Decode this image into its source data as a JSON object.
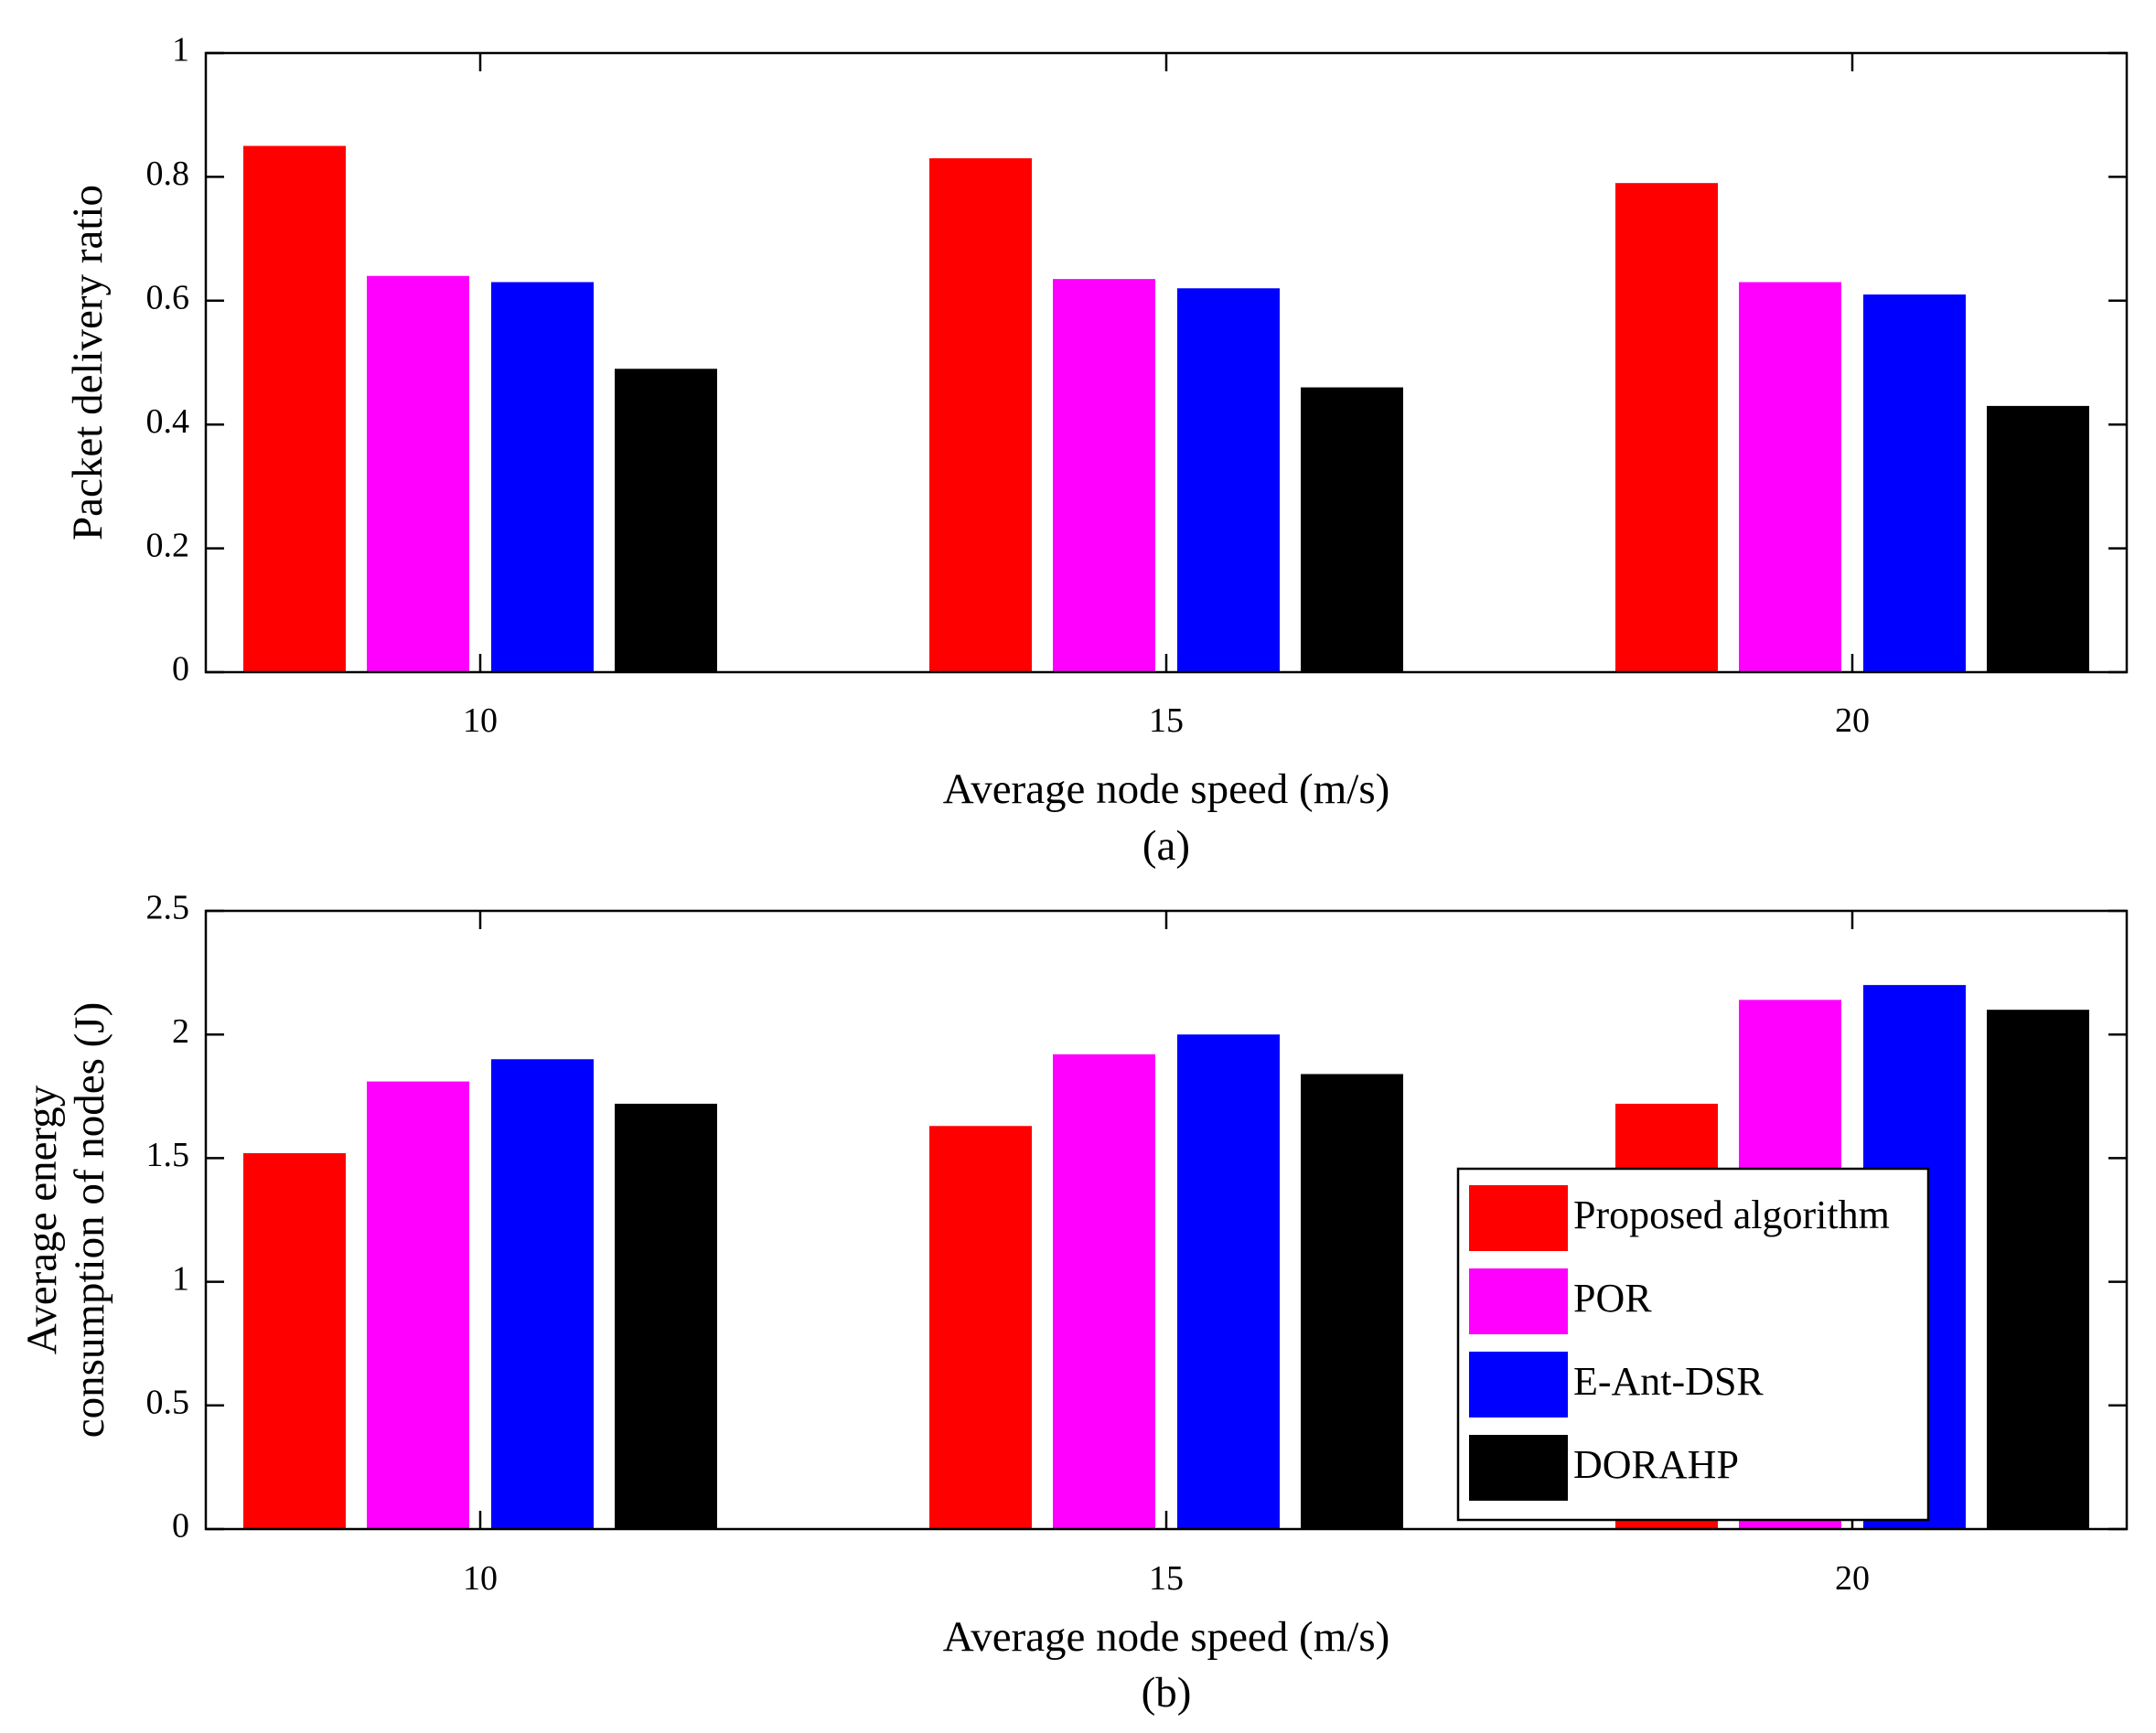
{
  "chart_data": [
    {
      "type": "bar",
      "categories": [
        "10",
        "15",
        "20"
      ],
      "series": [
        {
          "name": "Proposed algorithm",
          "values": [
            0.85,
            0.83,
            0.79
          ]
        },
        {
          "name": "POR",
          "values": [
            0.64,
            0.635,
            0.63
          ]
        },
        {
          "name": "E-Ant-DSR",
          "values": [
            0.63,
            0.62,
            0.61
          ]
        },
        {
          "name": "DORAHP",
          "values": [
            0.49,
            0.46,
            0.43
          ]
        }
      ],
      "xlabel": "Average node speed (m/s)",
      "ylabel_lines": [
        "Packet delivery ratio"
      ],
      "caption": "(a)",
      "ylim": [
        0,
        1
      ],
      "yticks": [
        0,
        0.2,
        0.4,
        0.6,
        0.8,
        1
      ],
      "ytick_labels": [
        "0",
        "0.2",
        "0.4",
        "0.6",
        "0.8",
        "1"
      ],
      "grid": false,
      "legend": "none"
    },
    {
      "type": "bar",
      "categories": [
        "10",
        "15",
        "20"
      ],
      "series": [
        {
          "name": "Proposed algorithm",
          "values": [
            1.52,
            1.63,
            1.72
          ]
        },
        {
          "name": "POR",
          "values": [
            1.81,
            1.92,
            2.14
          ]
        },
        {
          "name": "E-Ant-DSR",
          "values": [
            1.9,
            2.0,
            2.2
          ]
        },
        {
          "name": "DORAHP",
          "values": [
            1.72,
            1.84,
            2.1
          ]
        }
      ],
      "xlabel": "Average node speed (m/s)",
      "ylabel_lines": [
        "Average energy",
        "consumption of nodes (J)"
      ],
      "caption": "(b)",
      "ylim": [
        0,
        2.5
      ],
      "yticks": [
        0,
        0.5,
        1,
        1.5,
        2,
        2.5
      ],
      "ytick_labels": [
        "0",
        "0.5",
        "1",
        "1.5",
        "2",
        "2.5"
      ],
      "grid": false,
      "legend": "bottom-right"
    }
  ],
  "colors": {
    "Proposed algorithm": "#ff0000",
    "POR": "#ff00ff",
    "E-Ant-DSR": "#0000ff",
    "DORAHP": "#000000"
  }
}
